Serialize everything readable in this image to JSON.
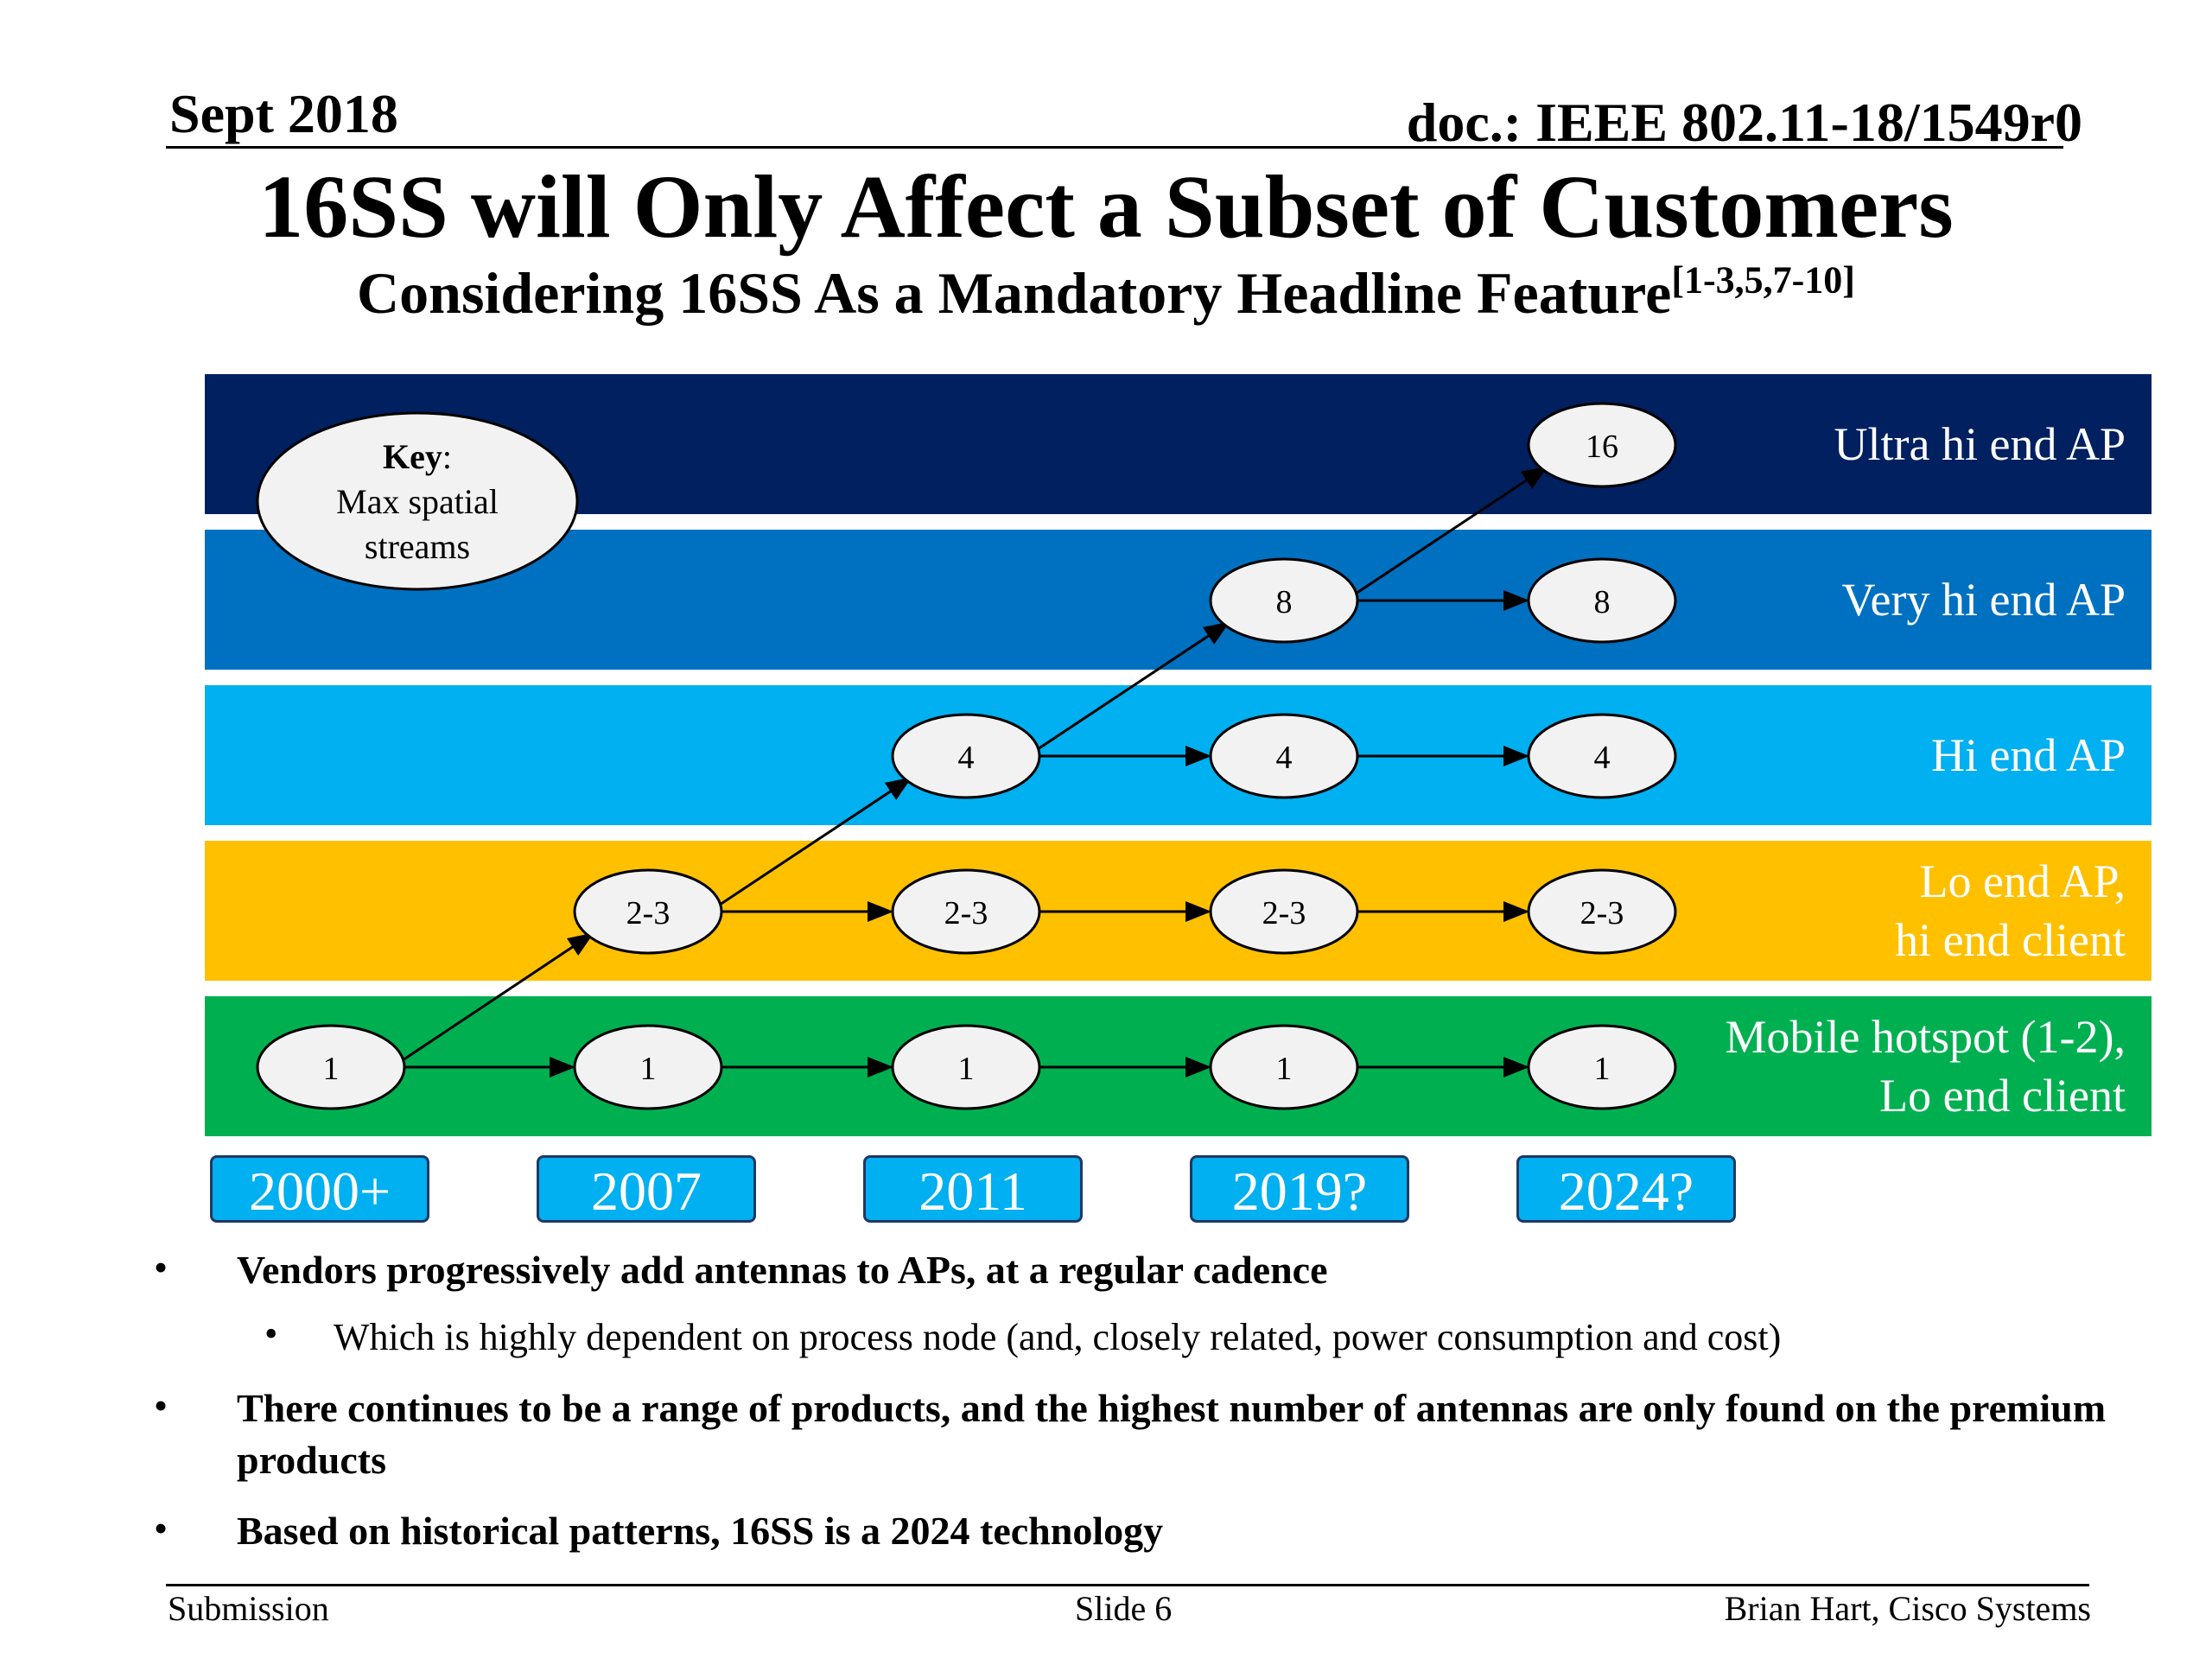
{
  "header": {
    "date": "Sept 2018",
    "doc_id": "doc.: IEEE 802.11-18/1549r0"
  },
  "title": "16SS will Only Affect a Subset of Customers",
  "subtitle": {
    "text": "Considering 16SS As a Mandatory Headline Feature",
    "refs": "[1-3,5,7-10]"
  },
  "key": {
    "label": "Key",
    "desc_line1": "Max spatial",
    "desc_line2": "streams"
  },
  "colors": {
    "ultra": "#002060",
    "very": "#0070c0",
    "hi": "#00b0f0",
    "lo": "#ffc000",
    "mobile": "#00b050",
    "year_box": "#00b0f0"
  },
  "bands": [
    {
      "id": "ultra",
      "label_line1": "Ultra hi end AP",
      "label_line2": ""
    },
    {
      "id": "very",
      "label_line1": "Very hi end AP",
      "label_line2": ""
    },
    {
      "id": "hi",
      "label_line1": "Hi end AP",
      "label_line2": ""
    },
    {
      "id": "lo",
      "label_line1": "Lo end AP,",
      "label_line2": "hi end client"
    },
    {
      "id": "mobile",
      "label_line1": "Mobile hotspot (1-2),",
      "label_line2": "Lo end client"
    }
  ],
  "years": [
    "2000+",
    "2007",
    "2011",
    "2019?",
    "2024?"
  ],
  "nodes": [
    {
      "band": 4,
      "year": 0,
      "value": "1"
    },
    {
      "band": 4,
      "year": 1,
      "value": "1"
    },
    {
      "band": 4,
      "year": 2,
      "value": "1"
    },
    {
      "band": 4,
      "year": 3,
      "value": "1"
    },
    {
      "band": 4,
      "year": 4,
      "value": "1"
    },
    {
      "band": 3,
      "year": 1,
      "value": "2-3"
    },
    {
      "band": 3,
      "year": 2,
      "value": "2-3"
    },
    {
      "band": 3,
      "year": 3,
      "value": "2-3"
    },
    {
      "band": 3,
      "year": 4,
      "value": "2-3"
    },
    {
      "band": 2,
      "year": 2,
      "value": "4"
    },
    {
      "band": 2,
      "year": 3,
      "value": "4"
    },
    {
      "band": 2,
      "year": 4,
      "value": "4"
    },
    {
      "band": 1,
      "year": 3,
      "value": "8"
    },
    {
      "band": 1,
      "year": 4,
      "value": "8"
    },
    {
      "band": 0,
      "year": 4,
      "value": "16"
    }
  ],
  "bullets": [
    {
      "level": 1,
      "text": "Vendors progressively add antennas to APs, at a regular cadence"
    },
    {
      "level": 2,
      "text": "Which is highly dependent on process node (and, closely related, power consumption and cost)"
    },
    {
      "level": 1,
      "text": "There continues to be a range of products, and the highest number of antennas are only found on the premium products"
    },
    {
      "level": 1,
      "text": "Based on historical patterns, 16SS is a 2024 technology"
    }
  ],
  "footer": {
    "left": "Submission",
    "center": "Slide 6",
    "right": "Brian Hart, Cisco Systems"
  }
}
